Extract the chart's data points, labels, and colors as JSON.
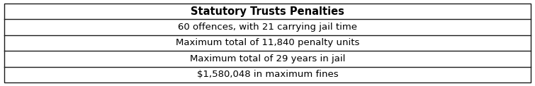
{
  "title": "Statutory Trusts Penalties",
  "rows": [
    "60 offences, with 21 carrying jail time",
    "Maximum total of 11,840 penalty units",
    "Maximum total of 29 years in jail",
    "$1,580,048 in maximum fines"
  ],
  "title_fontsize": 10.5,
  "row_fontsize": 9.5,
  "bg_color": "#ffffff",
  "border_color": "#1a1a1a",
  "border_lw": 1.0,
  "fig_width": 7.55,
  "fig_height": 1.22,
  "dpi": 100
}
